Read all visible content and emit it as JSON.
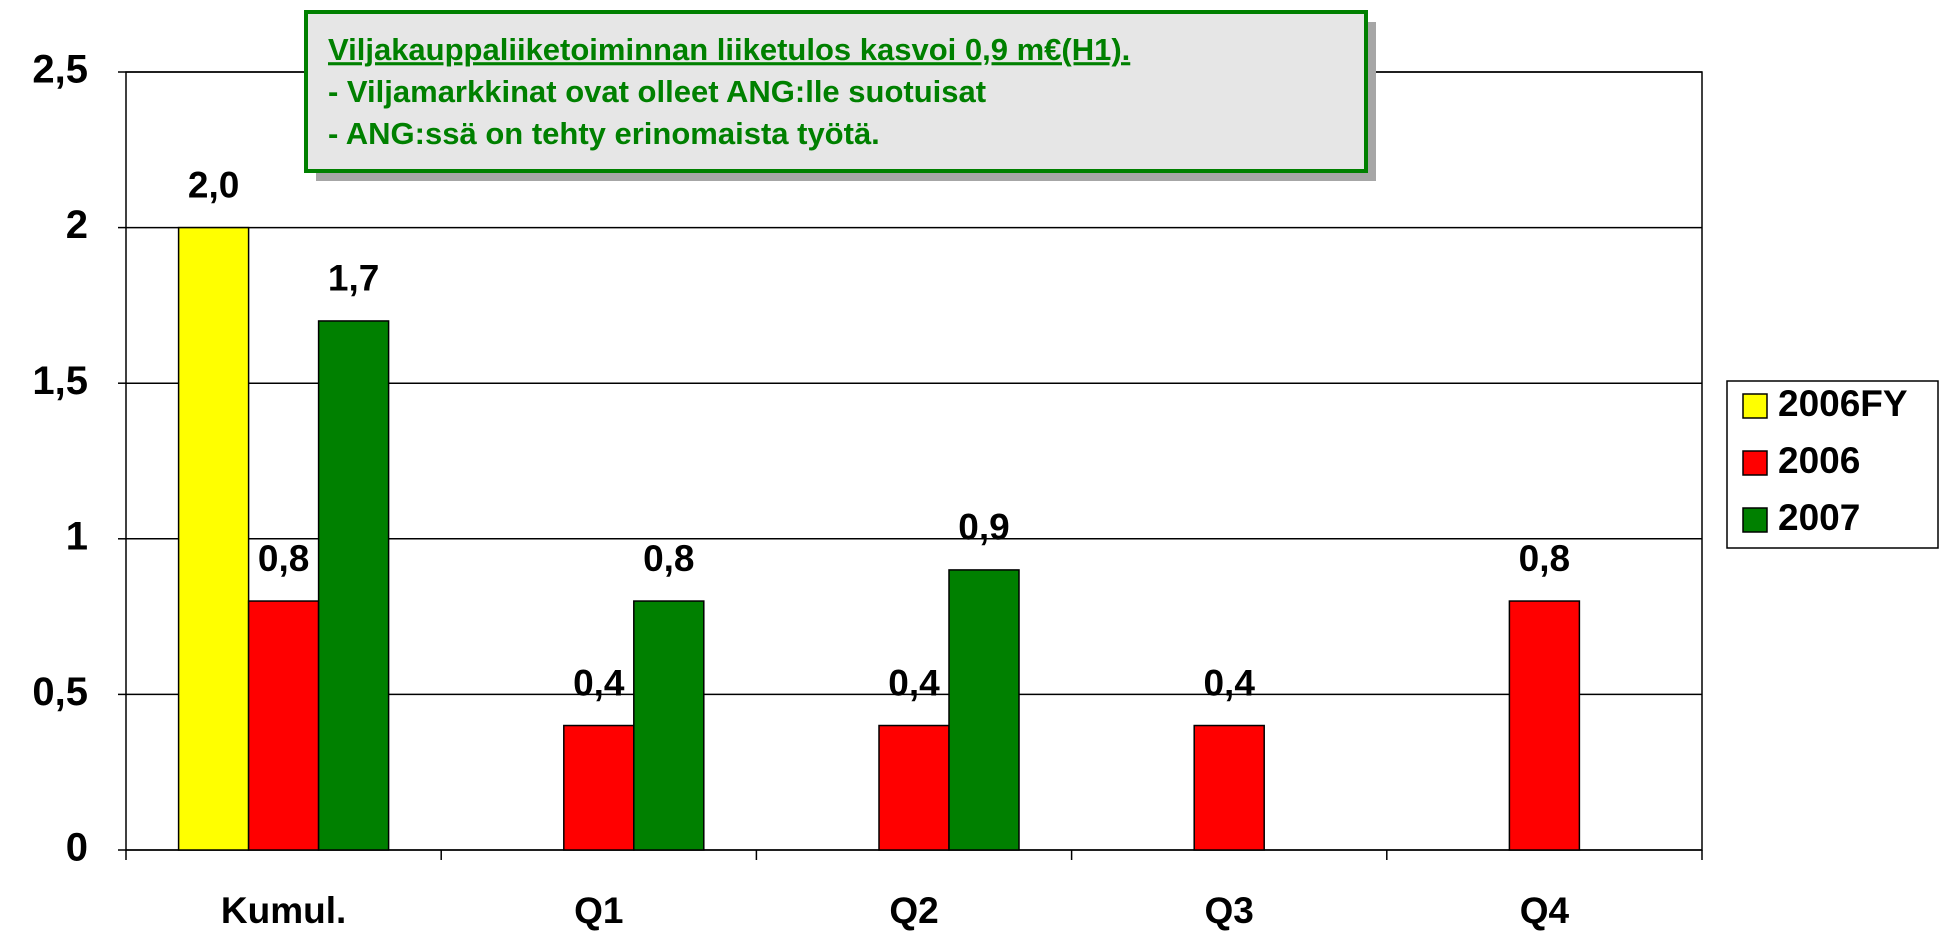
{
  "chart_data": {
    "type": "bar",
    "annotation": {
      "lines": [
        "Viljakauppaliiketoiminnan liiketulos kasvoi 0,9 m€(H1).",
        "- Viljamarkkinat ovat olleet ANG:lle suotuisat",
        "- ANG:ssä on tehty erinomaista työtä."
      ]
    },
    "categories": [
      "Kumul.",
      "Q1",
      "Q2",
      "Q3",
      "Q4"
    ],
    "series": [
      {
        "name": "2006FY",
        "color": "#ffff00",
        "values": [
          2.0,
          null,
          null,
          null,
          null
        ],
        "value_labels": [
          "2,0",
          null,
          null,
          null,
          null
        ]
      },
      {
        "name": "2006",
        "color": "#ff0000",
        "values": [
          0.8,
          0.4,
          0.4,
          0.4,
          0.8
        ],
        "value_labels": [
          "0,8",
          "0,4",
          "0,4",
          "0,4",
          "0,8"
        ]
      },
      {
        "name": "2007",
        "color": "#008000",
        "values": [
          1.7,
          0.8,
          0.9,
          null,
          null
        ],
        "value_labels": [
          "1,7",
          "0,8",
          "0,9",
          null,
          null
        ]
      }
    ],
    "ylim": [
      0,
      2.5
    ],
    "yticks": [
      0,
      {
        "value": 0.5,
        "label": "0,5"
      },
      1,
      {
        "value": 1.5,
        "label": "1,5"
      },
      2,
      {
        "value": 2.5,
        "label": "2,5"
      }
    ],
    "grid": true,
    "legend": "right"
  }
}
